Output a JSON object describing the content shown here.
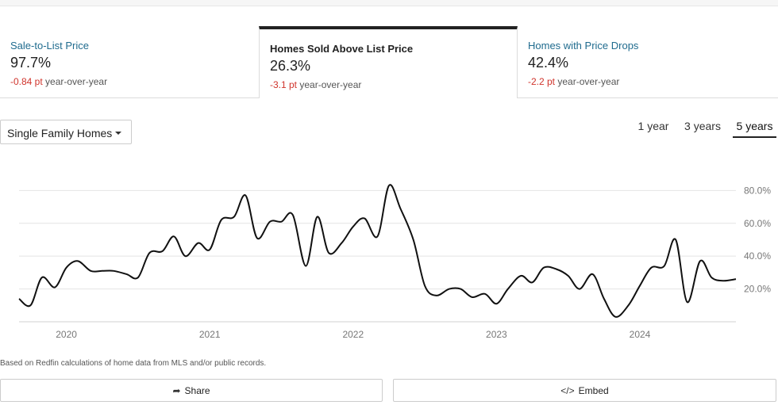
{
  "tabs": [
    {
      "label": "Sale-to-List Price",
      "value": "97.7%",
      "delta": "-0.84 pt",
      "suffix": "year-over-year",
      "active": false
    },
    {
      "label": "Homes Sold Above List Price",
      "value": "26.3%",
      "delta": "-3.1 pt",
      "suffix": "year-over-year",
      "active": true
    },
    {
      "label": "Homes with Price Drops",
      "value": "42.4%",
      "delta": "-2.2 pt",
      "suffix": "year-over-year",
      "active": false
    }
  ],
  "filters": {
    "property_type": "Single Family Homes",
    "ranges": [
      "1 year",
      "3 years",
      "5 years"
    ],
    "selected_range": "5 years"
  },
  "chart_data": {
    "type": "line",
    "title": "",
    "xlabel": "",
    "ylabel": "",
    "x_ticks": [
      "2020",
      "2021",
      "2022",
      "2023",
      "2024"
    ],
    "y_ticks": [
      "20.0%",
      "40.0%",
      "60.0%",
      "80.0%"
    ],
    "ylim": [
      0,
      85
    ],
    "xlim": [
      2019.67,
      2024.67
    ],
    "grid": true,
    "series": [
      {
        "name": "",
        "color": "#111111",
        "x": [
          2019.67,
          2019.75,
          2019.83,
          2019.92,
          2020.0,
          2020.08,
          2020.17,
          2020.25,
          2020.33,
          2020.42,
          2020.5,
          2020.58,
          2020.67,
          2020.75,
          2020.83,
          2020.92,
          2021.0,
          2021.08,
          2021.17,
          2021.25,
          2021.33,
          2021.42,
          2021.5,
          2021.58,
          2021.67,
          2021.75,
          2021.83,
          2021.92,
          2022.0,
          2022.08,
          2022.17,
          2022.25,
          2022.33,
          2022.42,
          2022.5,
          2022.58,
          2022.67,
          2022.75,
          2022.83,
          2022.92,
          2023.0,
          2023.08,
          2023.17,
          2023.25,
          2023.33,
          2023.42,
          2023.5,
          2023.58,
          2023.67,
          2023.75,
          2023.83,
          2023.92,
          2024.0,
          2024.08,
          2024.17,
          2024.25,
          2024.33,
          2024.42,
          2024.5,
          2024.58,
          2024.67
        ],
        "y": [
          14,
          10,
          27,
          21,
          33,
          37,
          31,
          31,
          31,
          29,
          27,
          42,
          43,
          52,
          40,
          48,
          44,
          62,
          64,
          77,
          51,
          61,
          61,
          65,
          34,
          64,
          42,
          48,
          58,
          63,
          52,
          83,
          69,
          50,
          22,
          16,
          20,
          20,
          15,
          17,
          11,
          20,
          28,
          24,
          33,
          32,
          28,
          20,
          29,
          14,
          3,
          10,
          22,
          33,
          34,
          50,
          12,
          37,
          27,
          25,
          26
        ]
      }
    ]
  },
  "footnote": "Based on Redfin calculations of home data from MLS and/or public records.",
  "actions": {
    "share": "Share",
    "embed": "Embed"
  },
  "icons": {
    "share": "share-icon",
    "embed": "code-icon"
  }
}
